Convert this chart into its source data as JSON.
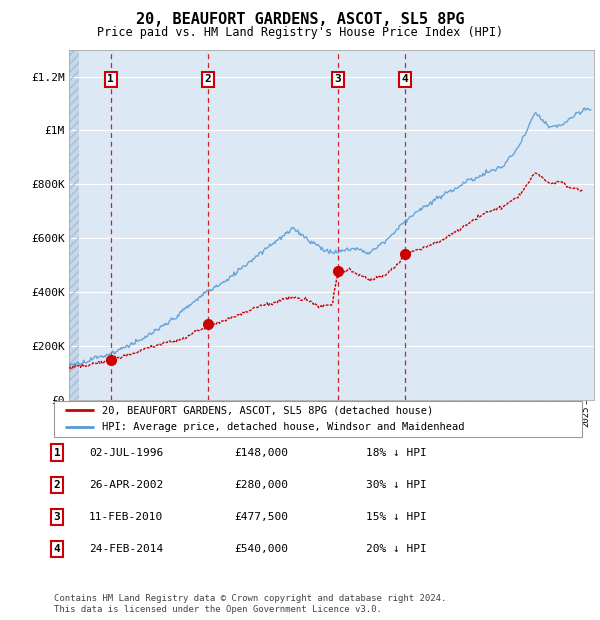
{
  "title": "20, BEAUFORT GARDENS, ASCOT, SL5 8PG",
  "subtitle": "Price paid vs. HM Land Registry's House Price Index (HPI)",
  "ylim": [
    0,
    1300000
  ],
  "yticks": [
    0,
    200000,
    400000,
    600000,
    800000,
    1000000,
    1200000
  ],
  "ytick_labels": [
    "£0",
    "£200K",
    "£400K",
    "£600K",
    "£800K",
    "£1M",
    "£1.2M"
  ],
  "hpi_color": "#5b9bd5",
  "sale_color": "#cc0000",
  "bg_color": "#dce9f5",
  "hatch_bg": "#c5d8ea",
  "xmin": 1994,
  "xmax": 2025.5,
  "hatch_end": 1994.6,
  "sale_points": [
    {
      "date": 1996.504,
      "price": 148000,
      "label": "1"
    },
    {
      "date": 2002.32,
      "price": 280000,
      "label": "2"
    },
    {
      "date": 2010.12,
      "price": 477500,
      "label": "3"
    },
    {
      "date": 2014.15,
      "price": 540000,
      "label": "4"
    }
  ],
  "legend_entries": [
    {
      "label": "20, BEAUFORT GARDENS, ASCOT, SL5 8PG (detached house)",
      "color": "#cc0000"
    },
    {
      "label": "HPI: Average price, detached house, Windsor and Maidenhead",
      "color": "#5b9bd5"
    }
  ],
  "table_rows": [
    {
      "num": "1",
      "date": "02-JUL-1996",
      "price": "£148,000",
      "pct": "18% ↓ HPI"
    },
    {
      "num": "2",
      "date": "26-APR-2002",
      "price": "£280,000",
      "pct": "30% ↓ HPI"
    },
    {
      "num": "3",
      "date": "11-FEB-2010",
      "price": "£477,500",
      "pct": "15% ↓ HPI"
    },
    {
      "num": "4",
      "date": "24-FEB-2014",
      "price": "£540,000",
      "pct": "20% ↓ HPI"
    }
  ],
  "footnote": "Contains HM Land Registry data © Crown copyright and database right 2024.\nThis data is licensed under the Open Government Licence v3.0."
}
